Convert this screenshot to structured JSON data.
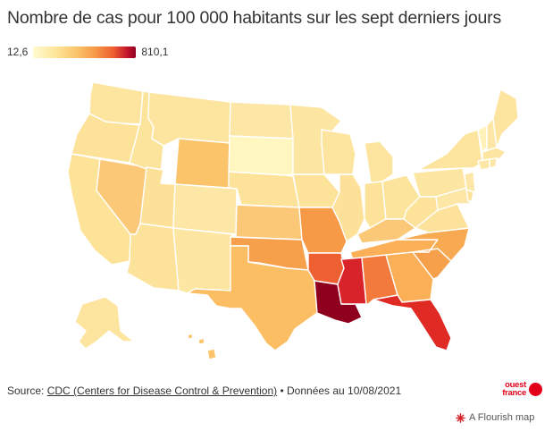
{
  "title": "Nombre de cas pour 100 000 habitants sur les sept derniers jours",
  "legend": {
    "min_label": "12,6",
    "max_label": "810,1"
  },
  "footer": {
    "prefix": "Source: ",
    "source_link": "CDC (Centers for Disease Control & Prevention)",
    "suffix": " • Données au 10/08/2021"
  },
  "brand": {
    "line1": "ouest",
    "line2": "france"
  },
  "flourish": {
    "label": "A Flourish map",
    "icon": "flourish-star-icon"
  },
  "colors": {
    "brand_red": "#e2001a",
    "scale": [
      "#fffbd0",
      "#fde59a",
      "#fbc46b",
      "#f79a48",
      "#ee5f32",
      "#c2142b",
      "#8f001f"
    ]
  }
}
